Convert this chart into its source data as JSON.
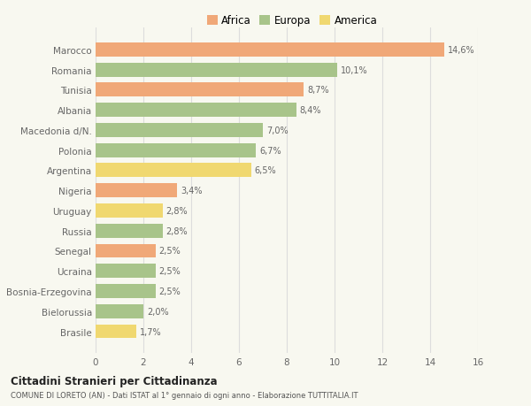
{
  "countries": [
    "Marocco",
    "Romania",
    "Tunisia",
    "Albania",
    "Macedonia d/N.",
    "Polonia",
    "Argentina",
    "Nigeria",
    "Uruguay",
    "Russia",
    "Senegal",
    "Ucraina",
    "Bosnia-Erzegovina",
    "Bielorussia",
    "Brasile"
  ],
  "values": [
    14.6,
    10.1,
    8.7,
    8.4,
    7.0,
    6.7,
    6.5,
    3.4,
    2.8,
    2.8,
    2.5,
    2.5,
    2.5,
    2.0,
    1.7
  ],
  "labels": [
    "14,6%",
    "10,1%",
    "8,7%",
    "8,4%",
    "7,0%",
    "6,7%",
    "6,5%",
    "3,4%",
    "2,8%",
    "2,8%",
    "2,5%",
    "2,5%",
    "2,5%",
    "2,0%",
    "1,7%"
  ],
  "continent": [
    "Africa",
    "Europa",
    "Africa",
    "Europa",
    "Europa",
    "Europa",
    "America",
    "Africa",
    "America",
    "Europa",
    "Africa",
    "Europa",
    "Europa",
    "Europa",
    "America"
  ],
  "colors": {
    "Africa": "#F0A878",
    "Europa": "#A8C48A",
    "America": "#F0D870"
  },
  "legend_labels": [
    "Africa",
    "Europa",
    "America"
  ],
  "legend_colors": [
    "#F0A878",
    "#A8C48A",
    "#F0D870"
  ],
  "xlim": [
    0,
    16
  ],
  "xticks": [
    0,
    2,
    4,
    6,
    8,
    10,
    12,
    14,
    16
  ],
  "title": "Cittadini Stranieri per Cittadinanza",
  "subtitle": "COMUNE DI LORETO (AN) - Dati ISTAT al 1° gennaio di ogni anno - Elaborazione TUTTITALIA.IT",
  "bg_color": "#F8F8F0",
  "bar_height": 0.7
}
